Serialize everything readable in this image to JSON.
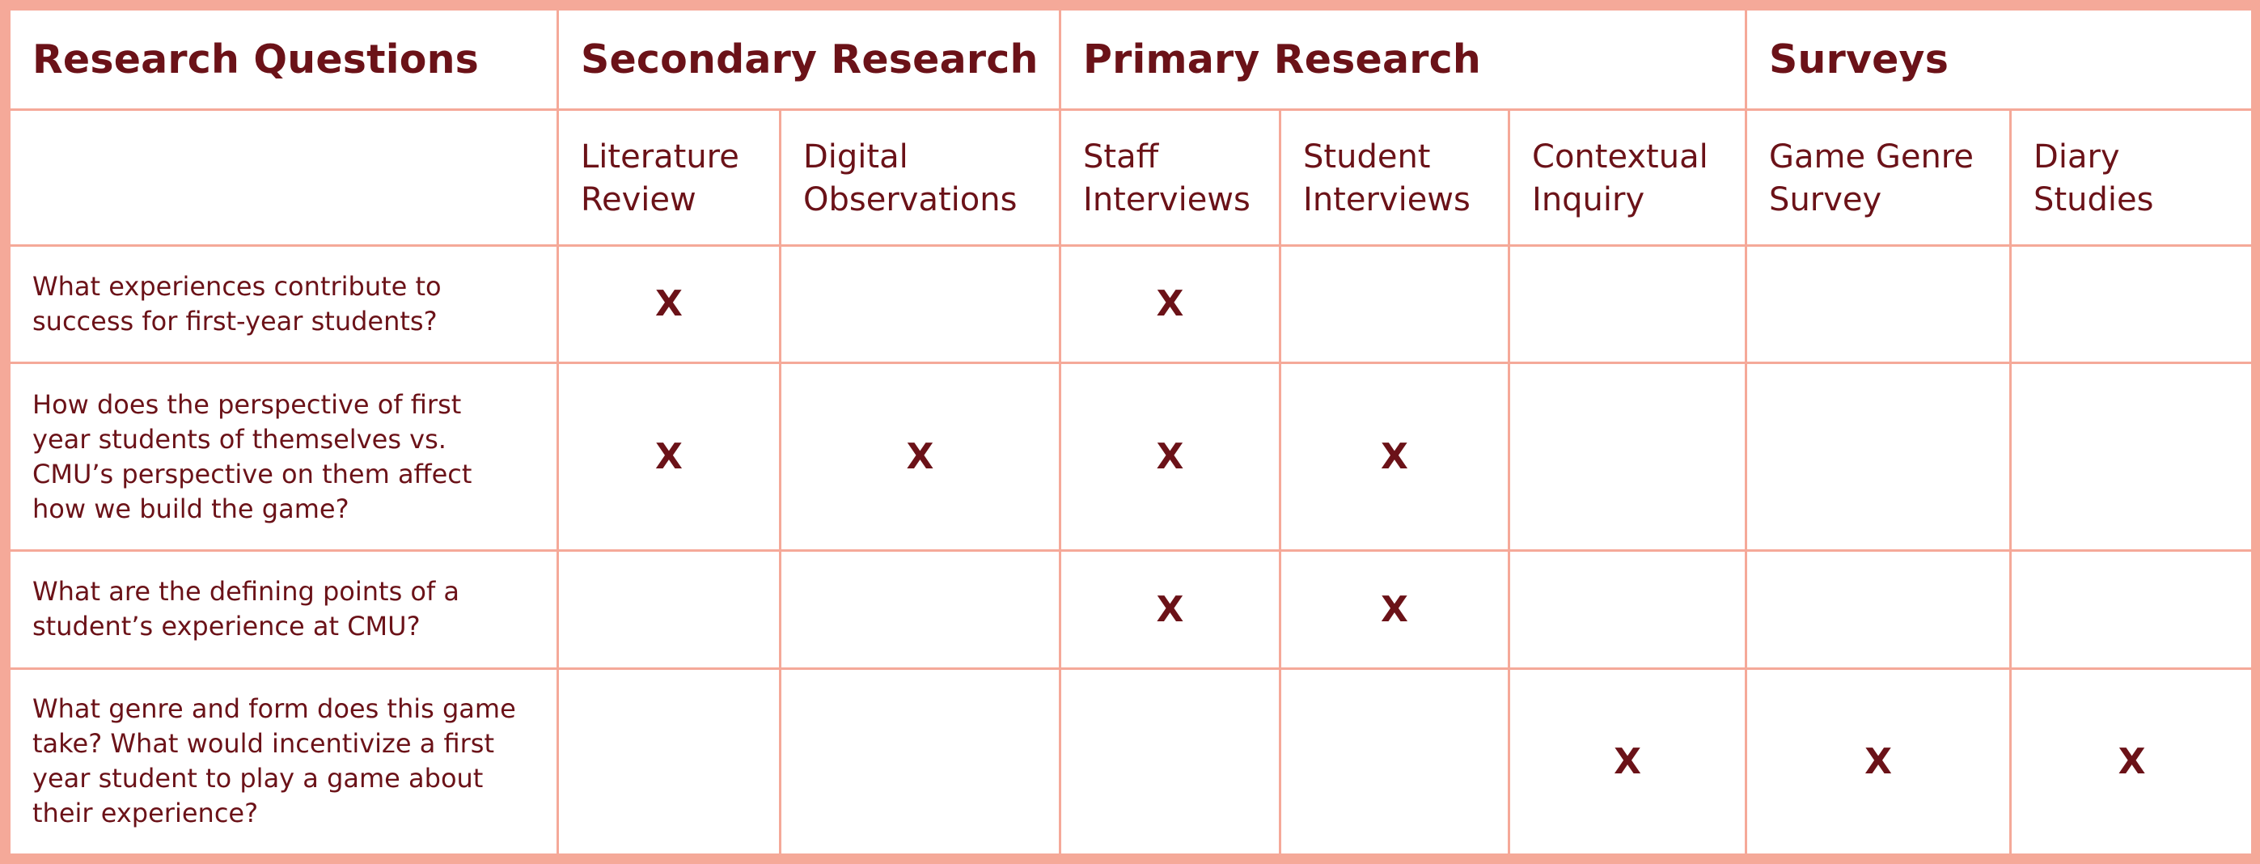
{
  "group_headers": {
    "research_questions": "Research Questions",
    "secondary_research": "Secondary Research",
    "primary_research": "Primary Research",
    "surveys": "Surveys"
  },
  "methods": {
    "literature_review": "Literature\nReview",
    "digital_observations": "Digital\nObservations",
    "staff_interviews": "Staff\nInterviews",
    "student_interviews": "Student\nInterviews",
    "contextual_inquiry": "Contextual\nInquiry",
    "game_genre_survey": "Game Genre\nSurvey",
    "diary_studies": "Diary\nStudies"
  },
  "mark_symbol": "X",
  "questions": [
    {
      "text": "What experiences contribute to\nsuccess for first-year students?",
      "marks": [
        "X",
        "",
        "X",
        "",
        "",
        "",
        ""
      ]
    },
    {
      "text": "How does the perspective of first\nyear students of themselves vs.\nCMU’s perspective on them affect\nhow we build the game?",
      "marks": [
        "X",
        "X",
        "X",
        "X",
        "",
        "",
        ""
      ]
    },
    {
      "text": "What are the defining points of a\nstudent’s experience at CMU?",
      "marks": [
        "",
        "",
        "X",
        "X",
        "",
        "",
        ""
      ]
    },
    {
      "text": "What genre and form does this game\ntake? What would incentivize a first\nyear student to play a game about\ntheir experience?",
      "marks": [
        "",
        "",
        "",
        "",
        "X",
        "X",
        "X"
      ]
    }
  ],
  "colors": {
    "text": "#6b1218",
    "border": "#f5a999",
    "background": "#ffffff"
  }
}
